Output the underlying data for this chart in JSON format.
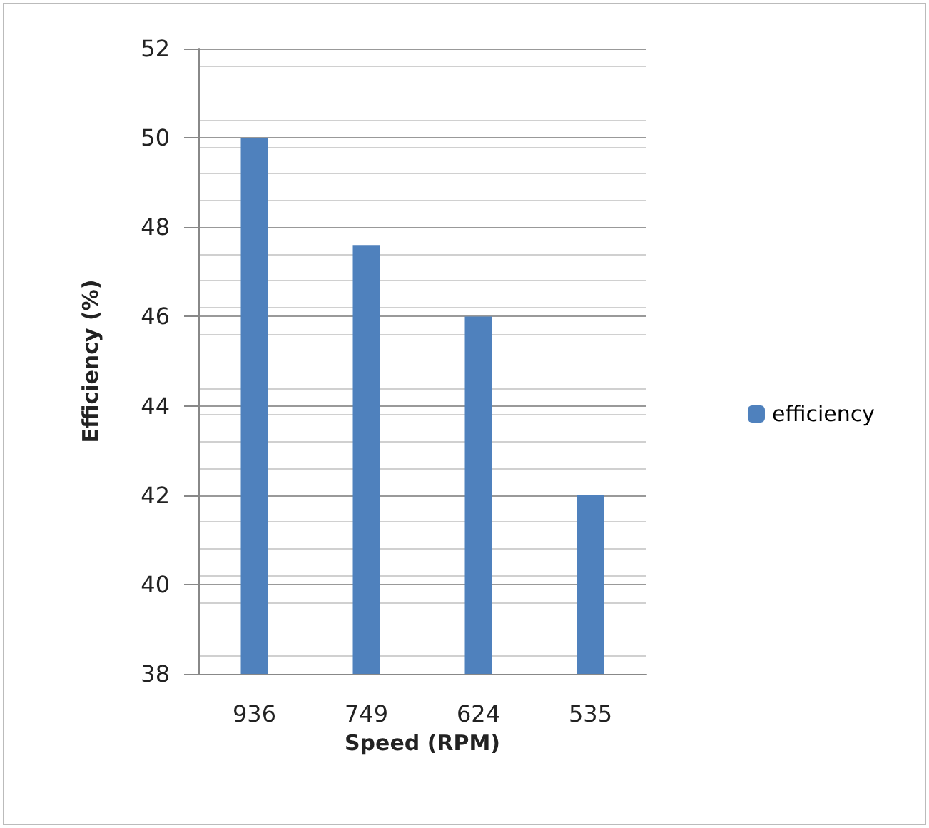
{
  "chart_data": {
    "type": "bar",
    "xlabel": "Speed (RPM)",
    "ylabel": "Efficiency (%)",
    "categories": [
      "936",
      "749",
      "624",
      "535"
    ],
    "series": [
      {
        "name": "efficiency",
        "color": "#4f81bd",
        "values": [
          50,
          47.6,
          46,
          42
        ]
      }
    ],
    "ylim": [
      38,
      52
    ],
    "yticks": [
      38,
      40,
      42,
      44,
      46,
      48,
      50,
      52
    ],
    "grid": "y",
    "legend": "right"
  }
}
